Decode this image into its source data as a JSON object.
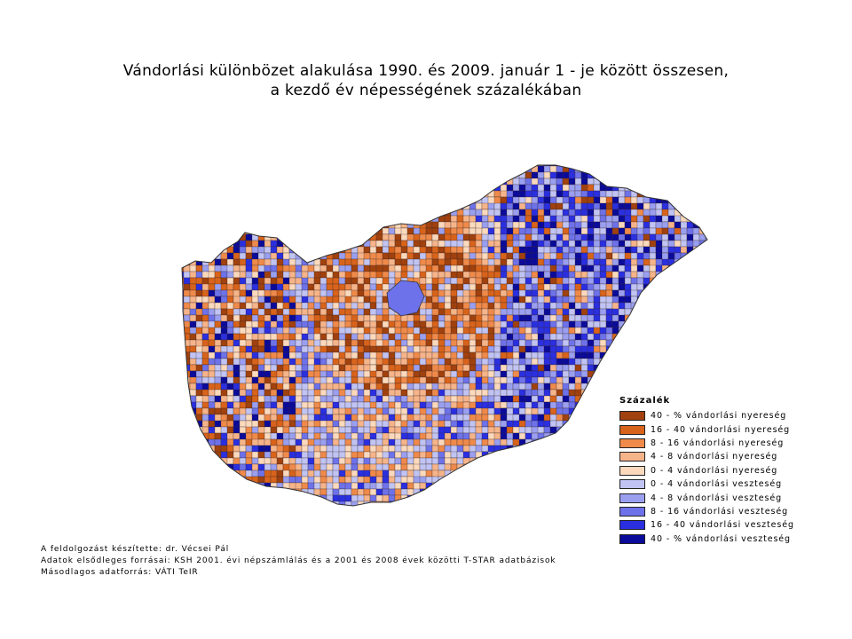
{
  "title": {
    "line1": "Vándorlási különbözet alakulása 1990. és 2009. január 1 - je között összesen,",
    "line2": "a kezdő év népességének százalékában"
  },
  "legend": {
    "heading": "Százalék",
    "items": [
      {
        "label": "40 - % vándorlási nyereség",
        "color": "#a0410e"
      },
      {
        "label": "16 - 40 vándorlási nyereség",
        "color": "#d8631b"
      },
      {
        "label": "8 - 16 vándorlási nyereség",
        "color": "#ef8a4b"
      },
      {
        "label": "4 - 8 vándorlási nyereség",
        "color": "#f6b48a"
      },
      {
        "label": "0 - 4 vándorlási nyereség",
        "color": "#fbd9bd"
      },
      {
        "label": "0 - 4 vándorlási veszteség",
        "color": "#c1c4f3"
      },
      {
        "label": "4 - 8 vándorlási veszteség",
        "color": "#9a9ff0"
      },
      {
        "label": "8 - 16 vándorlási veszteség",
        "color": "#6e72ea"
      },
      {
        "label": "16 - 40 vándorlási veszteség",
        "color": "#2a2fe0"
      },
      {
        "label": "40 - % vándorlási veszteség",
        "color": "#0b0b9a"
      }
    ]
  },
  "credits": {
    "author": "A feldolgozást készítette: dr. Vécsei Pál",
    "primary_sources": "Adatok elsődleges forrásai: KSH  2001. évi népszámlálás és  a 2001 és 2008 évek közötti T-STAR adatbázisok",
    "secondary_source": "Másodlagos adatforrás: VÁTI TeIR"
  }
}
